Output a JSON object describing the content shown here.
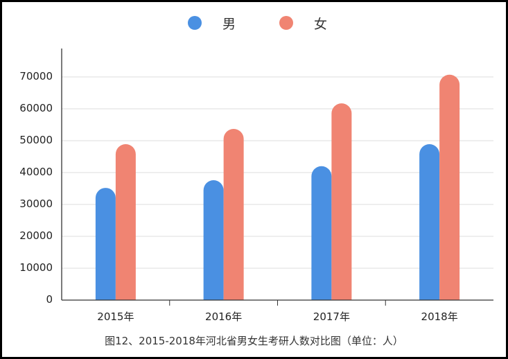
{
  "chart_data": {
    "type": "bar",
    "title": "图12、2015-2018年河北省男女生考研人数对比图（单位：人）",
    "categories": [
      "2015年",
      "2016年",
      "2017年",
      "2018年"
    ],
    "series": [
      {
        "name": "男",
        "color": "#4a90e2",
        "values": [
          35200,
          37600,
          42000,
          48900
        ]
      },
      {
        "name": "女",
        "color": "#f08472",
        "values": [
          48900,
          53700,
          61700,
          70700
        ]
      }
    ],
    "xlabel": "",
    "ylabel": "",
    "ylim": [
      0,
      70000
    ],
    "yticks": [
      0,
      10000,
      20000,
      30000,
      40000,
      50000,
      60000,
      70000
    ],
    "ytick_labels": [
      "0",
      "10000",
      "20000",
      "30000",
      "40000",
      "50000",
      "60000",
      "70000"
    ],
    "grid": true,
    "legend_position": "top",
    "bar_style": "rounded-top"
  },
  "legend": [
    {
      "label": "男",
      "color": "#4a90e2"
    },
    {
      "label": "女",
      "color": "#f08472"
    }
  ],
  "caption": "图12、2015-2018年河北省男女生考研人数对比图（单位：人）"
}
